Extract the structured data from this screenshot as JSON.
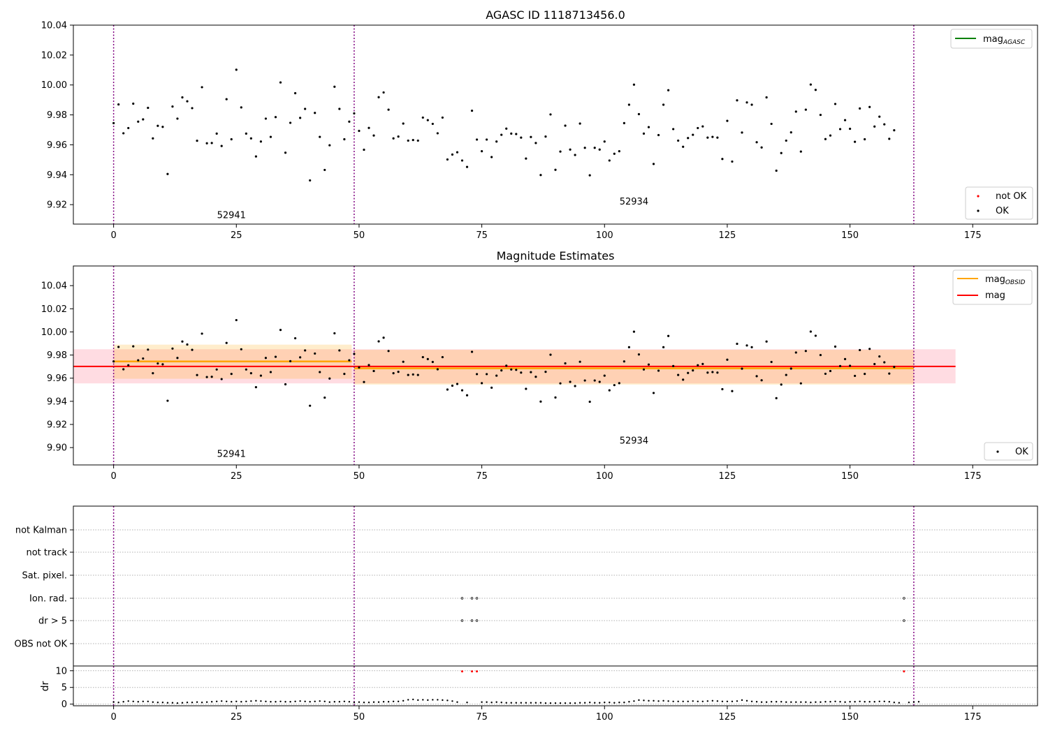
{
  "chart_data": [
    {
      "type": "scatter",
      "title": "AGASC ID 1118713456.0",
      "xlim": [
        -8.2,
        188.2
      ],
      "ylim": [
        9.907,
        10.04
      ],
      "x_ticks": [
        0,
        25,
        50,
        75,
        100,
        125,
        150,
        175
      ],
      "y_ticks": [
        9.92,
        9.94,
        9.96,
        9.98,
        10.0,
        10.02,
        10.04
      ],
      "y_tick_labels": [
        "9.92",
        "9.94",
        "9.96",
        "9.98",
        "10.00",
        "10.02",
        "10.04"
      ],
      "obs_boundaries": [
        0,
        49,
        163
      ],
      "obs_labels": [
        {
          "text": "52941",
          "x": 24,
          "y": 9.911
        },
        {
          "text": "52934",
          "x": 106,
          "y": 9.92
        }
      ],
      "legend_upper": {
        "label": "mag",
        "sub": "AGASC",
        "color": "#008000",
        "position": "upper right"
      },
      "legend_lower": [
        {
          "label": "not OK",
          "color": "#ff0000"
        },
        {
          "label": "OK",
          "color": "#000000"
        }
      ],
      "series": [
        {
          "name": "OK",
          "color": "#000000",
          "x_start": 0,
          "values": [
            9.9745,
            9.987,
            9.9677,
            9.9712,
            9.9875,
            9.9755,
            9.977,
            9.9847,
            9.9643,
            9.9727,
            9.972,
            9.9405,
            9.9856,
            9.9775,
            9.9917,
            9.9891,
            9.9845,
            9.9627,
            9.9985,
            9.961,
            9.9612,
            9.9675,
            9.9592,
            9.9905,
            9.9637,
            10.0102,
            9.985,
            9.9675,
            9.9643,
            9.9522,
            9.9622,
            9.9775,
            9.9653,
            9.9785,
            10.0017,
            9.9547,
            9.9747,
            9.9945,
            9.978,
            9.984,
            9.9362,
            9.9813,
            9.9653,
            9.9432,
            9.9597,
            9.9988,
            9.984,
            9.9637,
            9.9755,
            9.981,
            9.9693,
            9.9567,
            9.9713,
            9.9662,
            9.9918,
            9.995,
            9.9835,
            9.9643,
            9.9655,
            9.9742,
            9.9628,
            9.9632,
            9.9628,
            9.9782,
            9.9765,
            9.974,
            9.9677,
            9.9782,
            9.9502,
            9.9535,
            9.955,
            9.9495,
            9.9452,
            9.9828,
            9.9635,
            9.9557,
            9.9635,
            9.9518,
            9.9622,
            9.9667,
            9.9708,
            9.9675,
            9.9672,
            9.9648,
            9.9508,
            9.9652,
            9.9612,
            9.9398,
            9.9655,
            9.9803,
            9.9433,
            9.9555,
            9.9728,
            9.9568,
            9.9532,
            9.9742,
            9.958,
            9.9396,
            9.958,
            9.9568,
            9.9622,
            9.9495,
            9.954,
            9.9557,
            9.9745,
            9.9868,
            10.0002,
            9.9805,
            9.9675,
            9.9718,
            9.9472,
            9.9665,
            9.9868,
            9.9965,
            9.9705,
            9.9628,
            9.9587,
            9.9645,
            9.9667,
            9.9712,
            9.9723,
            9.9648,
            9.9653,
            9.9648,
            9.9505,
            9.976,
            9.9488,
            9.9897,
            9.9682,
            9.9883,
            9.9868,
            9.9617,
            9.9582,
            9.9917,
            9.974,
            9.9427,
            9.9545,
            9.9628,
            9.9683,
            9.9822,
            9.9555,
            9.9835,
            10.0003,
            9.9967,
            9.98,
            9.9638,
            9.9662,
            9.9873,
            9.9705,
            9.9765,
            9.9707,
            9.962,
            9.9843,
            9.9637,
            9.9853,
            9.9722,
            9.9788,
            9.9737,
            9.964,
            9.9697
          ]
        }
      ]
    },
    {
      "type": "scatter",
      "title": "Magnitude Estimates",
      "xlim": [
        -8.2,
        188.2
      ],
      "ylim": [
        9.885,
        10.057
      ],
      "x_ticks": [
        0,
        25,
        50,
        75,
        100,
        125,
        150,
        175
      ],
      "y_ticks": [
        9.9,
        9.92,
        9.94,
        9.96,
        9.98,
        10.0,
        10.02,
        10.04
      ],
      "y_tick_labels": [
        "9.90",
        "9.92",
        "9.94",
        "9.96",
        "9.98",
        "10.00",
        "10.02",
        "10.04"
      ],
      "obs_boundaries": [
        0,
        49,
        163
      ],
      "obs_labels": [
        {
          "text": "52941",
          "x": 24,
          "y": 9.892
        },
        {
          "text": "52934",
          "x": 106,
          "y": 9.9035
        }
      ],
      "mag": {
        "value": 9.9702,
        "low": 9.9555,
        "high": 9.985,
        "x_range": [
          -8.2,
          171.5
        ],
        "color": "#ff0000",
        "band_color": "#ffc0cb"
      },
      "mag_obsid": [
        {
          "value": 9.9745,
          "low": 9.9595,
          "high": 9.989,
          "x_range": [
            0,
            48.5
          ]
        },
        {
          "value": 9.9685,
          "low": 9.9545,
          "high": 9.9845,
          "x_range": [
            49,
            163
          ]
        }
      ],
      "mag_obsid_color": "#ffa500",
      "legend_upper": [
        {
          "label": "mag",
          "sub": "OBSID",
          "color": "#ffa500"
        },
        {
          "label": "mag",
          "sub": "",
          "color": "#ff0000"
        }
      ],
      "legend_lower": [
        {
          "label": "OK",
          "color": "#000000"
        }
      ],
      "series_ref": 0
    },
    {
      "type": "scatter",
      "title": "",
      "xlim": [
        -8.2,
        188.2
      ],
      "x_ticks": [
        0,
        25,
        50,
        75,
        100,
        125,
        150,
        175
      ],
      "obs_boundaries": [
        0,
        49,
        163
      ],
      "flag_rows": [
        "not Kalman",
        "not track",
        "Sat. pixel.",
        "Ion. rad.",
        "dr > 5",
        "OBS not OK"
      ],
      "flag_points": [
        {
          "row": "Ion. rad.",
          "x": [
            71,
            73,
            74,
            161
          ]
        },
        {
          "row": "dr > 5",
          "x": [
            71,
            73,
            74,
            161
          ]
        }
      ],
      "dr": {
        "ylabel": "dr",
        "ylim": [
          -0.5,
          11
        ],
        "y_ticks": [
          0,
          5,
          10
        ],
        "y_tick_labels": [
          "0",
          "5",
          "10"
        ],
        "outliers_x": [
          71,
          73,
          74,
          161
        ],
        "outlier_value": 9.8,
        "x_start": 0,
        "values": [
          0.6,
          0.5,
          0.7,
          0.9,
          0.8,
          0.7,
          0.8,
          0.8,
          0.6,
          0.5,
          0.5,
          0.4,
          0.4,
          0.3,
          0.4,
          0.5,
          0.5,
          0.6,
          0.5,
          0.6,
          0.7,
          0.8,
          0.9,
          0.8,
          0.7,
          0.8,
          0.7,
          0.8,
          0.9,
          1.0,
          0.9,
          0.8,
          0.7,
          0.7,
          0.8,
          0.7,
          0.7,
          0.8,
          0.9,
          0.8,
          0.7,
          0.8,
          0.9,
          0.8,
          0.6,
          0.7,
          0.7,
          0.8,
          0.7,
          0.5,
          0.6,
          0.5,
          0.5,
          0.6,
          0.6,
          0.7,
          0.7,
          0.8,
          0.8,
          1.0,
          1.3,
          1.4,
          1.2,
          1.3,
          1.2,
          1.3,
          1.3,
          1.2,
          1.1,
          0.9,
          0.6,
          9.8,
          0.5,
          9.8,
          9.8,
          0.6,
          0.6,
          0.5,
          0.6,
          0.5,
          0.4,
          0.4,
          0.4,
          0.4,
          0.4,
          0.4,
          0.4,
          0.4,
          0.3,
          0.3,
          0.3,
          0.3,
          0.3,
          0.3,
          0.3,
          0.4,
          0.4,
          0.5,
          0.4,
          0.4,
          0.5,
          0.5,
          0.4,
          0.5,
          0.5,
          0.7,
          0.9,
          1.2,
          1.1,
          1.0,
          1.0,
          0.9,
          1.0,
          0.9,
          0.8,
          0.8,
          0.8,
          0.8,
          0.9,
          0.8,
          0.8,
          0.9,
          1.0,
          0.9,
          0.8,
          0.8,
          0.8,
          0.9,
          1.2,
          1.0,
          0.8,
          0.7,
          0.6,
          0.6,
          0.7,
          0.7,
          0.7,
          0.6,
          0.6,
          0.6,
          0.6,
          0.6,
          0.5,
          0.6,
          0.6,
          0.7,
          0.7,
          0.8,
          0.7,
          0.6,
          0.7,
          0.7,
          0.8,
          0.7,
          0.7,
          0.7,
          0.8,
          0.8,
          0.7,
          0.5,
          0.4,
          9.8,
          0.5,
          0.6,
          0.7
        ]
      }
    }
  ]
}
